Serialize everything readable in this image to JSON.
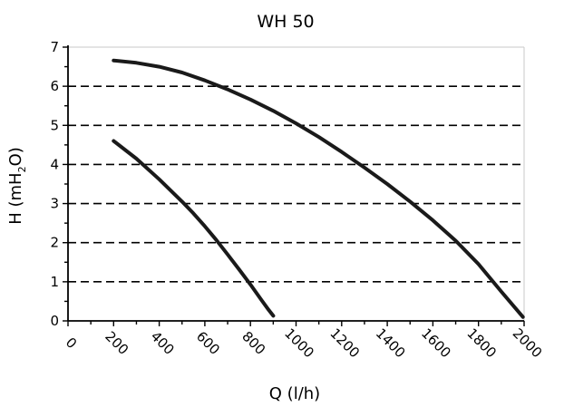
{
  "chart_data": {
    "type": "line",
    "title": "WH 50",
    "xlabel": "Q (l/h)",
    "ylabel": {
      "prefix": "H (mH",
      "subscript": "2",
      "suffix": "O)"
    },
    "xlim": [
      0,
      2000
    ],
    "ylim": [
      0,
      7
    ],
    "x_ticks": [
      0,
      200,
      400,
      600,
      800,
      1000,
      1200,
      1400,
      1600,
      1800,
      2000
    ],
    "y_ticks": [
      0,
      1,
      2,
      3,
      4,
      5,
      6,
      7
    ],
    "grid": "dashed horizontal",
    "legend": "none",
    "line_color": "#1a1a1a",
    "series": [
      {
        "x": [
          200,
          300,
          400,
          500,
          600,
          700,
          800,
          900,
          1000,
          1100,
          1200,
          1300,
          1400,
          1500,
          1600,
          1700,
          1800,
          1900,
          1995
        ],
        "values": [
          6.66,
          6.6,
          6.5,
          6.35,
          6.15,
          5.92,
          5.66,
          5.37,
          5.05,
          4.7,
          4.32,
          3.92,
          3.5,
          3.05,
          2.57,
          2.05,
          1.45,
          0.75,
          0.1
        ]
      },
      {
        "x": [
          200,
          300,
          400,
          500,
          550,
          600,
          650,
          700,
          750,
          800,
          850,
          880,
          900
        ],
        "values": [
          4.6,
          4.15,
          3.62,
          3.05,
          2.75,
          2.42,
          2.07,
          1.7,
          1.32,
          0.93,
          0.52,
          0.28,
          0.13
        ]
      }
    ]
  }
}
